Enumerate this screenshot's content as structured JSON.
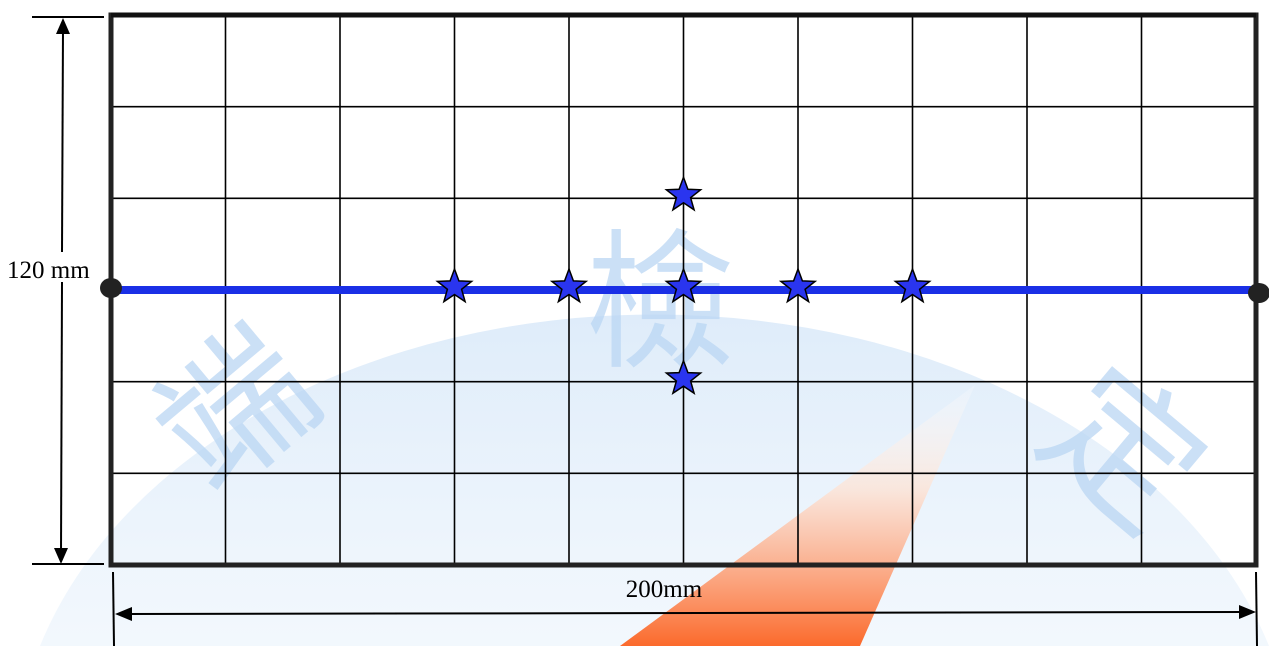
{
  "dimensions": {
    "height_label": "120 mm",
    "width_label": "200mm"
  },
  "grid": {
    "columns": 10,
    "rows": 6
  },
  "stars": [
    {
      "col": 3,
      "row": 3
    },
    {
      "col": 4,
      "row": 3
    },
    {
      "col": 5,
      "row": 3
    },
    {
      "col": 6,
      "row": 3
    },
    {
      "col": 7,
      "row": 3
    },
    {
      "col": 5,
      "row": 2
    },
    {
      "col": 5,
      "row": 4
    }
  ],
  "watermark": {
    "characters": [
      "端",
      "檢",
      "定"
    ]
  },
  "colors": {
    "grid_line": "#000000",
    "frame": "#222222",
    "blue_line": "#1a2fe6",
    "star_fill": "#2a35ef",
    "star_stroke": "#000000",
    "endpoint": "#222222",
    "watermark_blue": "#cfe3f7",
    "watermark_orange": "#fb6a2c"
  }
}
